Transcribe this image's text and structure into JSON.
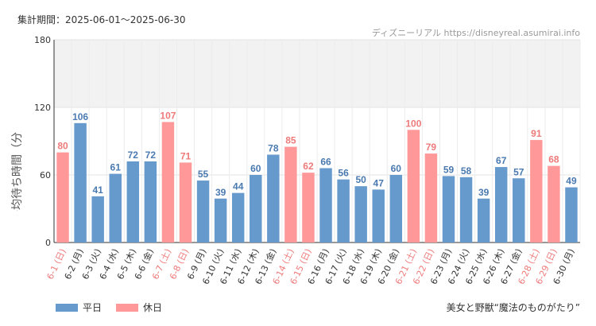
{
  "header": {
    "period_label": "集計期間：2025-06-01〜2025-06-30",
    "source_label": "ディズニーリアル https://disneyreal.asumirai.info"
  },
  "footer": {
    "attraction_label": "美女と野獣“魔法のものがたり”"
  },
  "colors": {
    "weekday": "#6699cc",
    "holiday": "#ff9999",
    "weekday_text": "#4a7ab0",
    "holiday_text": "#ee7a7a"
  },
  "chart_data": {
    "type": "bar",
    "ylabel": "平均待ち時間（分）",
    "ylim": [
      0,
      180
    ],
    "yticks": [
      0,
      60,
      120,
      180
    ],
    "highlight_band": [
      120,
      180
    ],
    "grid": true,
    "legend_position": "bottom-left",
    "categories": [
      "6-1 (日)",
      "6-2 (月)",
      "6-3 (火)",
      "6-4 (水)",
      "6-5 (木)",
      "6-6 (金)",
      "6-7 (土)",
      "6-8 (日)",
      "6-9 (月)",
      "6-10 (火)",
      "6-11 (水)",
      "6-12 (木)",
      "6-13 (金)",
      "6-14 (土)",
      "6-15 (日)",
      "6-16 (月)",
      "6-17 (火)",
      "6-18 (水)",
      "6-19 (木)",
      "6-20 (金)",
      "6-21 (土)",
      "6-22 (日)",
      "6-23 (月)",
      "6-24 (火)",
      "6-25 (水)",
      "6-26 (木)",
      "6-27 (金)",
      "6-28 (土)",
      "6-29 (日)",
      "6-30 (月)"
    ],
    "values": [
      80,
      106,
      41,
      61,
      72,
      72,
      107,
      71,
      55,
      39,
      44,
      60,
      78,
      85,
      62,
      66,
      56,
      50,
      47,
      60,
      100,
      79,
      59,
      58,
      39,
      67,
      57,
      91,
      68,
      49
    ],
    "day_type": [
      "休日",
      "平日",
      "平日",
      "平日",
      "平日",
      "平日",
      "休日",
      "休日",
      "平日",
      "平日",
      "平日",
      "平日",
      "平日",
      "休日",
      "休日",
      "平日",
      "平日",
      "平日",
      "平日",
      "平日",
      "休日",
      "休日",
      "平日",
      "平日",
      "平日",
      "平日",
      "平日",
      "休日",
      "休日",
      "平日"
    ],
    "legend": [
      {
        "name": "平日",
        "key": "weekday"
      },
      {
        "name": "休日",
        "key": "holiday"
      }
    ]
  }
}
